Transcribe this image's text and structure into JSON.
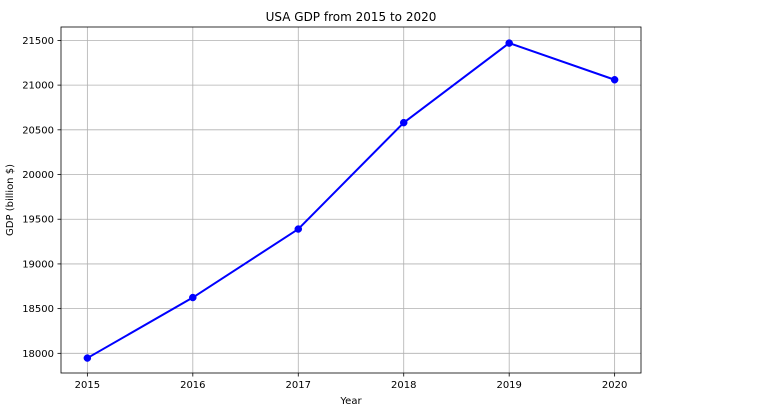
{
  "chart_data": {
    "type": "line",
    "title": "USA GDP from 2015 to 2020",
    "xlabel": "Year",
    "ylabel": "GDP (billion $)",
    "x": [
      2015,
      2016,
      2017,
      2018,
      2019,
      2020
    ],
    "x_tick_labels": [
      "2015",
      "2016",
      "2017",
      "2018",
      "2019",
      "2020"
    ],
    "series": [
      {
        "values": [
          17947,
          18624,
          19390,
          20580,
          21470,
          21060
        ]
      }
    ],
    "ylim": [
      17780,
      21650
    ],
    "xlim": [
      2014.75,
      2020.25
    ],
    "y_ticks": [
      18000,
      18500,
      19000,
      19500,
      20000,
      20500,
      21000,
      21500
    ],
    "y_tick_labels": [
      "18000",
      "18500",
      "19000",
      "19500",
      "20000",
      "20500",
      "21000",
      "21500"
    ],
    "grid": true,
    "line_color": "#0000ff",
    "marker": "circle"
  }
}
